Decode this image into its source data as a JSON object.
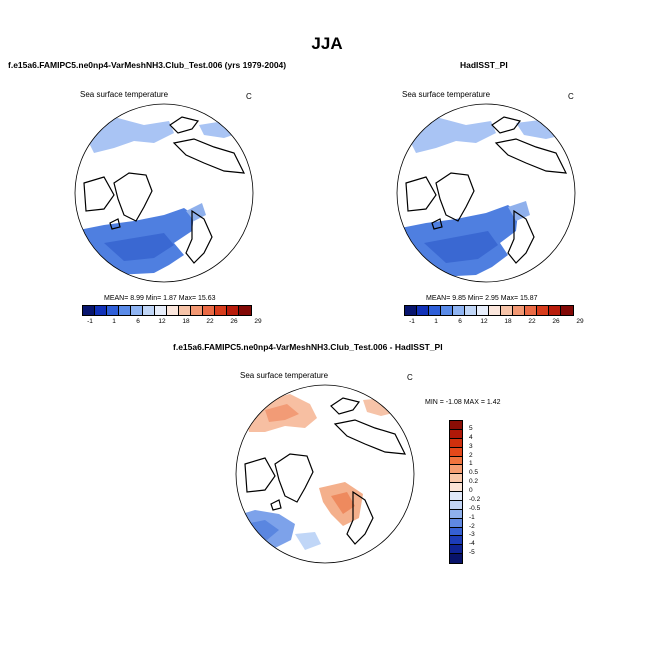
{
  "figure": {
    "title": "JJA"
  },
  "panels": {
    "model": {
      "title": "f.e15a6.FAMIPC5.ne0np4-VarMeshNH3.Club_Test.006 (yrs 1979-2004)",
      "var_label": "Sea surface temperature",
      "units": "C",
      "stats": {
        "mean_label": "MEAN=",
        "mean": "8.99",
        "min_label": "Min=",
        "min": "1.87",
        "max_label": "Max=",
        "max": "15.63"
      }
    },
    "obs": {
      "title": "HadISST_PI",
      "var_label": "Sea surface temperature",
      "units": "C",
      "stats": {
        "mean_label": "MEAN=",
        "mean": "9.85",
        "min_label": "Min=",
        "min": "2.95",
        "max_label": "Max=",
        "max": "15.87"
      }
    },
    "diff": {
      "title": "f.e15a6.FAMIPC5.ne0np4-VarMeshNH3.Club_Test.006 - HadISST_PI",
      "var_label": "Sea surface temperature",
      "units": "C",
      "stats_text": "MIN = -1.08 MAX =  1.42"
    }
  },
  "colorbars": {
    "sst_labels": [
      "-1",
      "1",
      "6",
      "12",
      "18",
      "22",
      "26",
      "29"
    ],
    "sst_colors": [
      "#08156e",
      "#1232b8",
      "#2f5fd8",
      "#5a8be8",
      "#8fb4f2",
      "#c0d6f7",
      "#e7eefb",
      "#fbe6dc",
      "#f6c3a8",
      "#f29873",
      "#ea6a45",
      "#d73c1c",
      "#b81c0b",
      "#820906"
    ],
    "diff_labels": [
      "5",
      "4",
      "3",
      "2",
      "1",
      "0.5",
      "0.2",
      "0",
      "-0.2",
      "-0.5",
      "-1",
      "-2",
      "-3",
      "-4",
      "-5"
    ],
    "diff_colors": [
      "#8a0d05",
      "#b01808",
      "#d0300d",
      "#e4481a",
      "#f0733e",
      "#f59d72",
      "#f9c7a9",
      "#fbe4d6",
      "#e0e8f8",
      "#c2d4f4",
      "#8fb0ec",
      "#5f88e2",
      "#3560d4",
      "#1c3cb8",
      "#0f2393",
      "#08136a"
    ]
  }
}
